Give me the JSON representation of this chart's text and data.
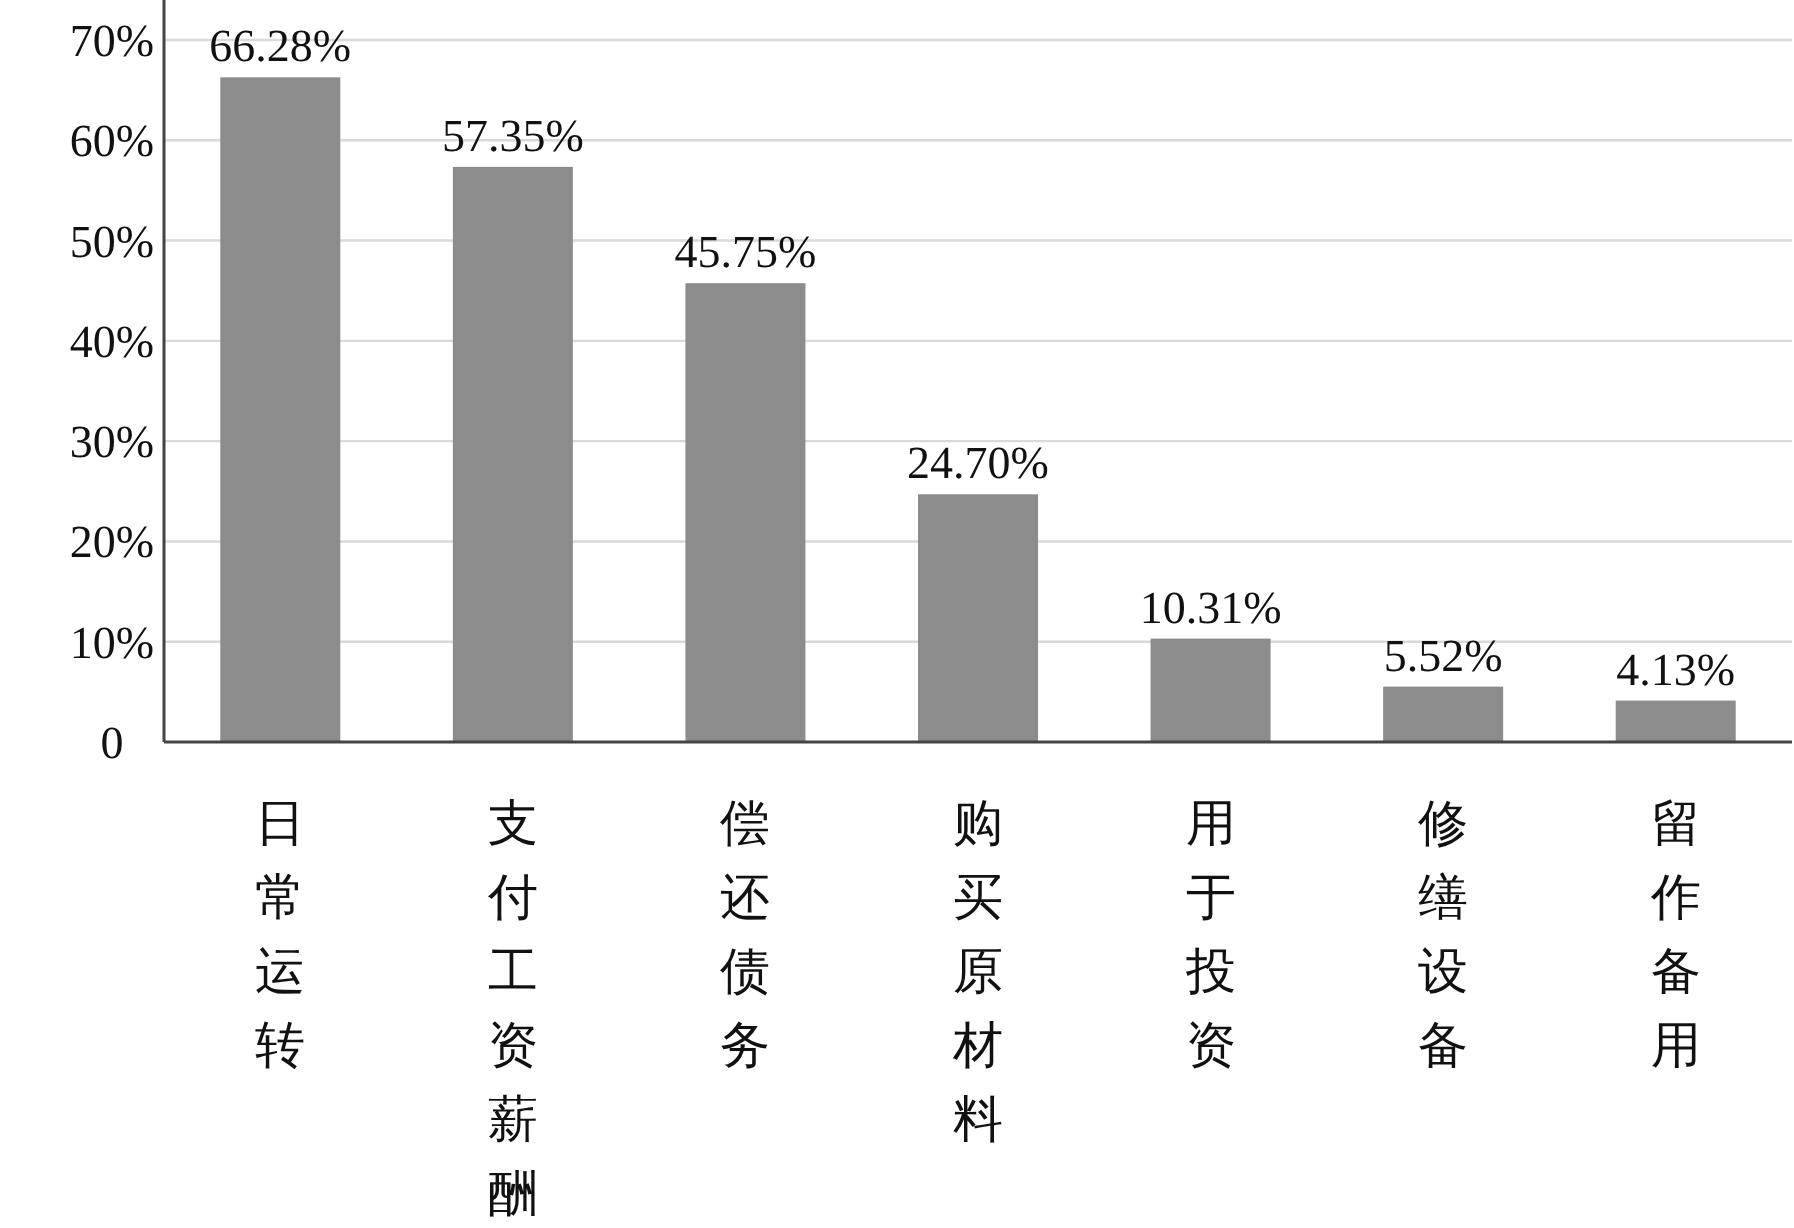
{
  "chart_data": {
    "type": "bar",
    "categories": [
      "日常运转",
      "支付工资薪酬",
      "偿还债务",
      "购买原材料",
      "用于投资",
      "修缮设备",
      "留作备用"
    ],
    "values": [
      66.28,
      57.35,
      45.75,
      24.7,
      10.31,
      5.52,
      4.13
    ],
    "value_labels": [
      "66.28%",
      "57.35%",
      "45.75%",
      "24.70%",
      "10.31%",
      "5.52%",
      "4.13%"
    ],
    "color": "#8c8c8c",
    "ylim": [
      0,
      70
    ],
    "yticks": [
      0,
      {
        "value": 10,
        "label": "10%"
      },
      {
        "value": 20,
        "label": "20%"
      },
      {
        "value": 30,
        "label": "30%"
      },
      {
        "value": 40,
        "label": "40%"
      },
      {
        "value": 50,
        "label": "50%"
      },
      {
        "value": 60,
        "label": "60%"
      },
      {
        "value": 70,
        "label": "70%"
      }
    ],
    "grid": "y"
  }
}
